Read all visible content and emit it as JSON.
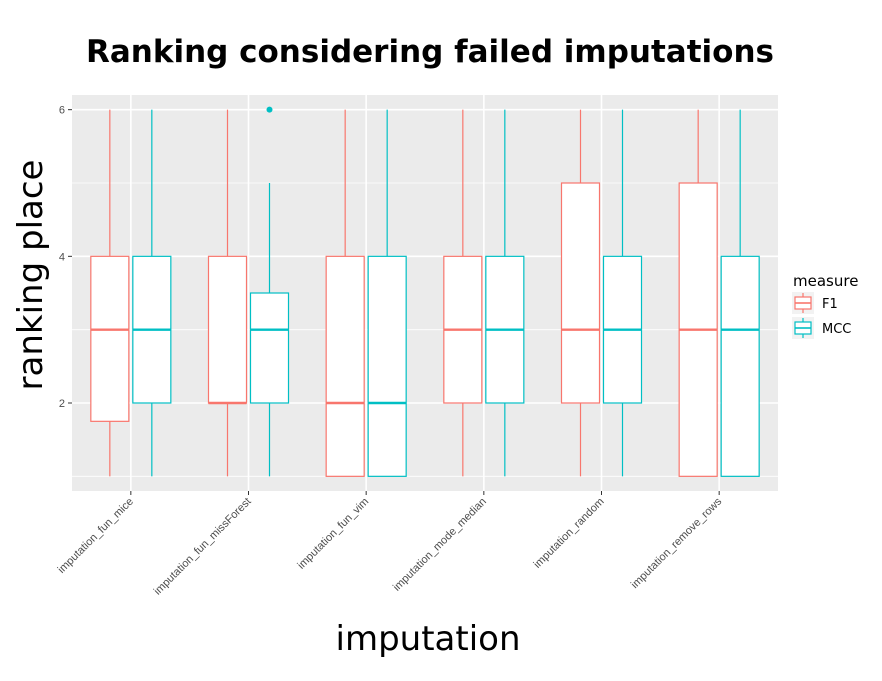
{
  "chart_data": {
    "type": "boxplot",
    "title": "Ranking considering failed imputations",
    "xlabel": "imputation",
    "ylabel": "ranking place",
    "ylim": [
      0.8,
      6.2
    ],
    "yticks": [
      2,
      4,
      6
    ],
    "categories": [
      "imputation_fun_mice",
      "imputation_fun_missForest",
      "imputation_fun_vim",
      "imputation_mode_median",
      "imputation_random",
      "imputation_remove_rows"
    ],
    "legend": {
      "title": "measure",
      "position": "right"
    },
    "series": [
      {
        "name": "F1",
        "color": "#F8766D",
        "boxes": [
          {
            "whisker_low": 1,
            "q1": 1.75,
            "median": 3,
            "q3": 4,
            "whisker_high": 6,
            "outliers": []
          },
          {
            "whisker_low": 1,
            "q1": 2,
            "median": 2,
            "q3": 4,
            "whisker_high": 6,
            "outliers": []
          },
          {
            "whisker_low": 1,
            "q1": 1,
            "median": 2,
            "q3": 4,
            "whisker_high": 6,
            "outliers": []
          },
          {
            "whisker_low": 1,
            "q1": 2,
            "median": 3,
            "q3": 4,
            "whisker_high": 6,
            "outliers": []
          },
          {
            "whisker_low": 1,
            "q1": 2,
            "median": 3,
            "q3": 5,
            "whisker_high": 6,
            "outliers": []
          },
          {
            "whisker_low": 1,
            "q1": 1,
            "median": 3,
            "q3": 5,
            "whisker_high": 6,
            "outliers": []
          }
        ]
      },
      {
        "name": "MCC",
        "color": "#00BFC4",
        "boxes": [
          {
            "whisker_low": 1,
            "q1": 2,
            "median": 3,
            "q3": 4,
            "whisker_high": 6,
            "outliers": []
          },
          {
            "whisker_low": 1,
            "q1": 2,
            "median": 3,
            "q3": 3.5,
            "whisker_high": 5,
            "outliers": [
              6
            ]
          },
          {
            "whisker_low": 1,
            "q1": 1,
            "median": 2,
            "q3": 4,
            "whisker_high": 6,
            "outliers": []
          },
          {
            "whisker_low": 1,
            "q1": 2,
            "median": 3,
            "q3": 4,
            "whisker_high": 6,
            "outliers": []
          },
          {
            "whisker_low": 1,
            "q1": 2,
            "median": 3,
            "q3": 4,
            "whisker_high": 6,
            "outliers": []
          },
          {
            "whisker_low": 1,
            "q1": 1,
            "median": 3,
            "q3": 4,
            "whisker_high": 6,
            "outliers": []
          }
        ]
      }
    ]
  }
}
